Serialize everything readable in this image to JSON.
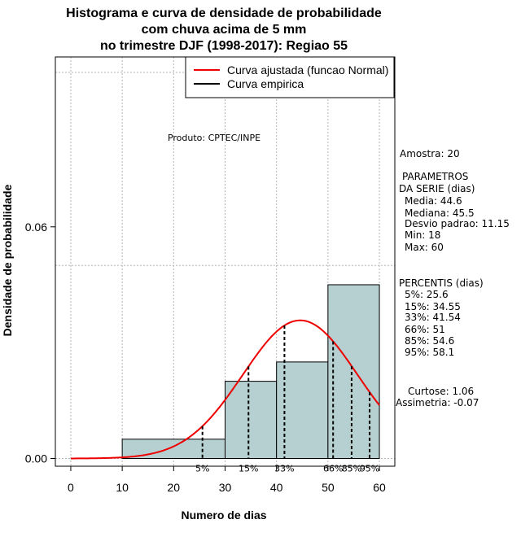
{
  "chart_data": {
    "type": "bar",
    "title_lines": [
      "Histograma e curva de densidade de probabilidade",
      "com chuva acima de 5 mm",
      "no trimestre DJF (1998-2017): Regiao 55"
    ],
    "xlabel": "Numero de dias",
    "ylabel": "Densidade de probabilidade",
    "xlim": [
      -3,
      63
    ],
    "ylim": [
      -0.002,
      0.104
    ],
    "x_ticks": [
      0,
      10,
      20,
      30,
      40,
      50,
      60
    ],
    "x_tick_labels": [
      "0",
      "10",
      "20",
      "30",
      "40",
      "50",
      "60"
    ],
    "y_ticks": [
      0.0,
      0.06
    ],
    "y_tick_labels": [
      "0.00",
      "0.06"
    ],
    "grid": true,
    "grid_x": [
      0,
      10,
      20,
      30,
      40,
      50,
      60
    ],
    "grid_y": [
      0.0,
      0.05,
      0.1
    ],
    "bin_edges": [
      10,
      30,
      40,
      50,
      60
    ],
    "values": [
      0.005,
      0.02,
      0.025,
      0.045
    ],
    "bar_color": "#b6cfd0",
    "normal_curve": {
      "mean": 44.6,
      "sd": 11.15,
      "x_from": 0,
      "x_to": 60,
      "color": "#ee0000"
    },
    "legend": {
      "position": "top-right",
      "entries": [
        {
          "label": "Curva ajustada (funcao Normal)",
          "color": "#ee0000"
        },
        {
          "label": "Curva empirica",
          "color": "#000000"
        }
      ]
    },
    "percentile_lines": [
      {
        "label": "5%",
        "x": 25.6
      },
      {
        "label": "15%",
        "x": 34.55
      },
      {
        "label": "33%",
        "x": 41.54
      },
      {
        "label": "66%",
        "x": 51
      },
      {
        "label": "85%",
        "x": 54.6
      },
      {
        "label": "95%",
        "x": 58.1
      }
    ],
    "annotation": "Produto: CPTEC/INPE"
  },
  "stats_panel": {
    "amostra": "Amostra: 20",
    "param_lines": [
      "PARAMETROS",
      "DA SERIE (dias)",
      "Media: 44.6",
      "Mediana: 45.5",
      "Desvio padrao: 11.15",
      "Min: 18",
      "Max: 60"
    ],
    "percentis_lines": [
      "PERCENTIS (dias)",
      "5%: 25.6",
      "15%: 34.55",
      "33%: 41.54",
      "66%: 51",
      "85%: 54.6",
      "95%: 58.1"
    ],
    "curtose": "Curtose: 1.06",
    "assimetria": "Assimetria: -0.07"
  }
}
